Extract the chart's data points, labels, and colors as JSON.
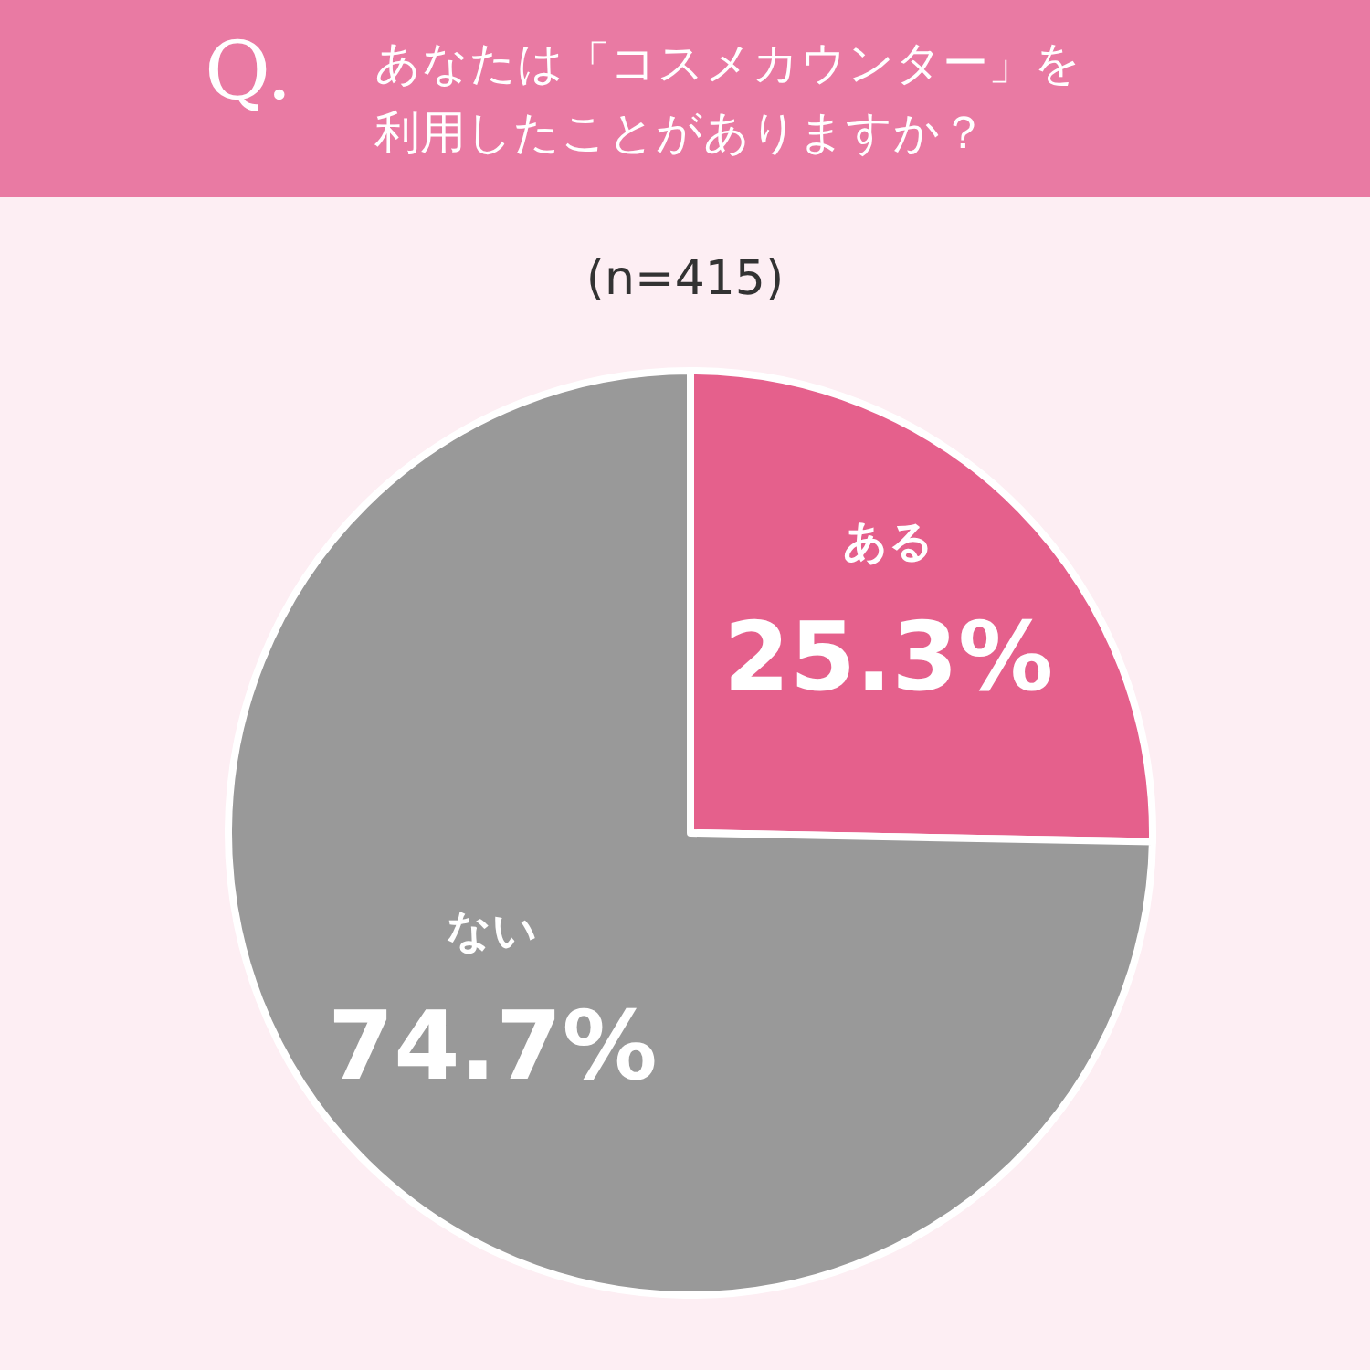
{
  "chart_data": {
    "type": "pie",
    "title": "あなたは「コスメカウンター」を利用したことがありますか？",
    "subtitle": "(n=415)",
    "annotations": [
      "Q."
    ],
    "categories": [
      "ある",
      "ない"
    ],
    "values": [
      25.3,
      74.7
    ],
    "colors": [
      "#e5608c",
      "#999999"
    ],
    "value_labels": [
      "25.3%",
      "74.7%"
    ]
  }
}
